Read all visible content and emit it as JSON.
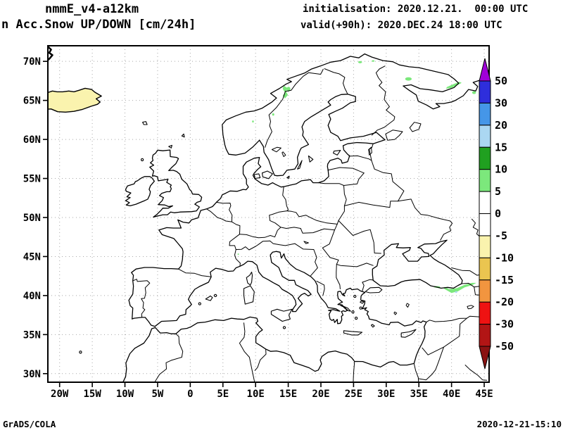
{
  "header": {
    "model_line": "nmmE_v4-a12km",
    "product_line": "n Acc.Snow UP/DOWN [cm/24h]",
    "init_line": "initialisation: 2020.12.21.  00:00 UTC",
    "valid_line": "valid(+90h): 2020.DEC.24 18:00 UTC"
  },
  "footer": {
    "credit": "GrADS/COLA",
    "timestamp": "2020-12-21-15:10"
  },
  "map": {
    "lat_ticks": [
      {
        "value": 70,
        "label": "70N"
      },
      {
        "value": 65,
        "label": "65N"
      },
      {
        "value": 60,
        "label": "60N"
      },
      {
        "value": 55,
        "label": "55N"
      },
      {
        "value": 50,
        "label": "50N"
      },
      {
        "value": 45,
        "label": "45N"
      },
      {
        "value": 40,
        "label": "40N"
      },
      {
        "value": 35,
        "label": "35N"
      },
      {
        "value": 30,
        "label": "30N"
      }
    ],
    "lon_ticks": [
      {
        "value": -20,
        "label": "20W"
      },
      {
        "value": -15,
        "label": "15W"
      },
      {
        "value": -10,
        "label": "10W"
      },
      {
        "value": -5,
        "label": "5W"
      },
      {
        "value": 0,
        "label": "0"
      },
      {
        "value": 5,
        "label": "5E"
      },
      {
        "value": 10,
        "label": "10E"
      },
      {
        "value": 15,
        "label": "15E"
      },
      {
        "value": 20,
        "label": "20E"
      },
      {
        "value": 25,
        "label": "25E"
      },
      {
        "value": 30,
        "label": "30E"
      },
      {
        "value": 35,
        "label": "35E"
      },
      {
        "value": 40,
        "label": "40E"
      },
      {
        "value": 45,
        "label": "45E"
      }
    ],
    "grid_color": "#a8a8a8",
    "coast_color": "#000000"
  },
  "colorbar": {
    "tick_labels": [
      "50",
      "30",
      "20",
      "15",
      "10",
      "5",
      "0",
      "-5",
      "-10",
      "-15",
      "-20",
      "-30",
      "-50"
    ],
    "segments_top_to_bottom": [
      "#2E2EDC",
      "#4596E8",
      "#ABD7F2",
      "#20A020",
      "#7CE87C",
      "#FFFFFF",
      "#FFFFFF",
      "#FAF3AE",
      "#EAC550",
      "#F2953F",
      "#EF1212",
      "#B21515"
    ],
    "above_max_color": "#A000D9",
    "below_min_color": "#8A1212"
  },
  "snow_patches": {
    "iceland_fill": "#FAF3AE",
    "increase_color": "#7CE87C",
    "strong_spot_color": "#ABD7F2",
    "blobs": [
      {
        "region": "norway-border-streak",
        "shape": "polygon",
        "color": "#7CE87C",
        "points": [
          [
            14.3,
            66.9
          ],
          [
            14.85,
            66.6
          ],
          [
            14.7,
            66.1
          ],
          [
            14.95,
            65.7
          ],
          [
            14.5,
            65.25
          ],
          [
            14.15,
            65.6
          ],
          [
            14.5,
            66.0
          ],
          [
            14.15,
            66.5
          ]
        ]
      },
      {
        "region": "norway-border-spot",
        "shape": "ellipse",
        "color": "#7CE87C",
        "lon": 15.05,
        "lat": 66.45,
        "rlon": 0.28,
        "rlat": 0.3
      },
      {
        "region": "south-norway-dot-1",
        "shape": "ellipse",
        "color": "#7CE87C",
        "lon": 12.7,
        "lat": 63.2,
        "rlon": 0.16,
        "rlat": 0.16
      },
      {
        "region": "south-norway-dot-2",
        "shape": "ellipse",
        "color": "#7CE87C",
        "lon": 9.6,
        "lat": 62.3,
        "rlon": 0.13,
        "rlat": 0.13
      },
      {
        "region": "finnmark-dot-1",
        "shape": "ellipse",
        "color": "#7CE87C",
        "lon": 26.0,
        "lat": 69.9,
        "rlon": 0.3,
        "rlat": 0.14
      },
      {
        "region": "finnmark-dot-2",
        "shape": "ellipse",
        "color": "#7CE87C",
        "lon": 28.0,
        "lat": 70.05,
        "rlon": 0.2,
        "rlat": 0.1
      },
      {
        "region": "kola-spot",
        "shape": "ellipse",
        "color": "#7CE87C",
        "lon": 33.4,
        "lat": 67.75,
        "rlon": 0.5,
        "rlat": 0.22
      },
      {
        "region": "white-sea-throat-streak",
        "shape": "polygon",
        "color": "#7CE87C",
        "points": [
          [
            39.15,
            66.5
          ],
          [
            40.0,
            66.6
          ],
          [
            41.0,
            67.0
          ],
          [
            41.55,
            67.25
          ],
          [
            41.2,
            67.38
          ],
          [
            40.2,
            67.05
          ],
          [
            39.3,
            66.72
          ]
        ]
      },
      {
        "region": "mezen-dot",
        "shape": "ellipse",
        "color": "#7CE87C",
        "lon": 43.45,
        "lat": 66.0,
        "rlon": 0.3,
        "rlat": 0.18
      },
      {
        "region": "alps-dot",
        "shape": "ellipse",
        "color": "#7CE87C",
        "lon": 7.35,
        "lat": 45.3,
        "rlon": 0.1,
        "rlat": 0.1
      },
      {
        "region": "pontic-strip-west",
        "shape": "polygon",
        "color": "#7CE87C",
        "points": [
          [
            37.3,
            41.05
          ],
          [
            38.3,
            40.92
          ],
          [
            38.2,
            41.18
          ],
          [
            37.4,
            41.22
          ]
        ]
      },
      {
        "region": "pontic-strip-east",
        "shape": "polygon",
        "color": "#7CE87C",
        "points": [
          [
            38.8,
            40.9
          ],
          [
            40.0,
            40.32
          ],
          [
            41.0,
            40.55
          ],
          [
            42.0,
            41.05
          ],
          [
            43.2,
            41.35
          ],
          [
            43.8,
            41.62
          ],
          [
            43.1,
            41.62
          ],
          [
            42.0,
            41.38
          ],
          [
            40.8,
            40.95
          ],
          [
            39.6,
            40.82
          ],
          [
            38.95,
            41.12
          ]
        ],
        "value": "5-10 cm"
      },
      {
        "region": "pontic-strong-spot",
        "shape": "ellipse",
        "color": "#ABD7F2",
        "lon": 40.7,
        "lat": 40.45,
        "rlon": 0.18,
        "rlat": 0.12
      }
    ]
  }
}
